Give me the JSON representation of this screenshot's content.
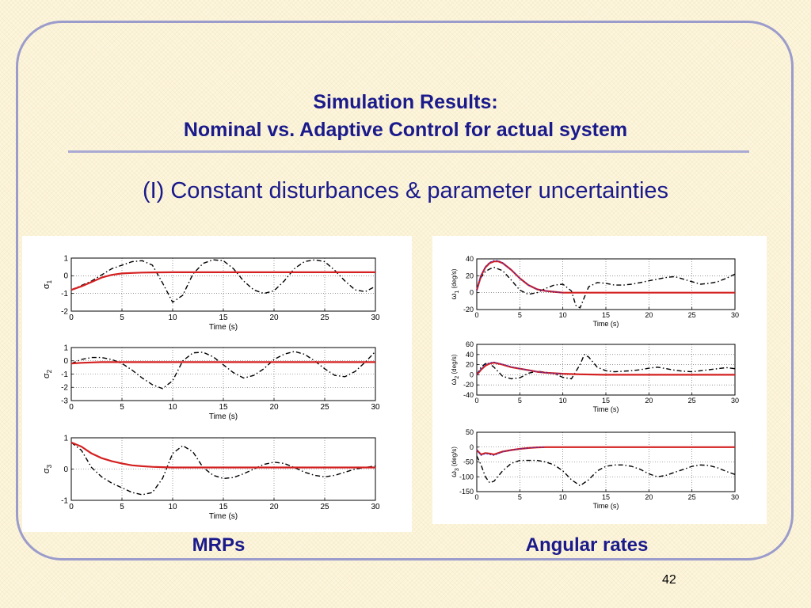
{
  "slide": {
    "title_line1": "Simulation Results:",
    "title_line2": "Nominal vs. Adaptive Control for actual system",
    "subtitle": "(I) Constant disturbances & parameter uncertainties",
    "caption_left": "MRPs",
    "caption_right": "Angular rates",
    "page_number": "42"
  },
  "colors": {
    "title": "#1a1a8c",
    "frame": "#9b9ccc",
    "adaptive_line": "#d42020",
    "nominal_line": "#000000",
    "reference_line": "#2a2acc"
  },
  "chart_data": [
    {
      "type": "line",
      "group": "MRPs",
      "ylabel_symbol": "σ",
      "ylabel_sub": "1",
      "ylabel_unit": "",
      "xlabel": "Time (s)",
      "xlim": [
        0,
        30
      ],
      "ylim": [
        -2,
        1
      ],
      "xticks": [
        0,
        5,
        10,
        15,
        20,
        25,
        30
      ],
      "yticks": [
        -2,
        -1,
        0,
        1
      ],
      "grid": true,
      "series": [
        {
          "style": "dashdot",
          "x": [
            0,
            2,
            4,
            6,
            7,
            8,
            9,
            10,
            11,
            12,
            13,
            14,
            15,
            16,
            17,
            18,
            19,
            20,
            21,
            22,
            23,
            24,
            25,
            26,
            27,
            28,
            29,
            30
          ],
          "y": [
            -0.8,
            -0.3,
            0.4,
            0.8,
            0.85,
            0.6,
            -0.4,
            -1.5,
            -1.1,
            0.1,
            0.7,
            0.9,
            0.85,
            0.4,
            -0.3,
            -0.8,
            -1.0,
            -0.85,
            -0.3,
            0.4,
            0.8,
            0.9,
            0.8,
            0.3,
            -0.3,
            -0.8,
            -0.9,
            -0.6
          ]
        },
        {
          "style": "solid",
          "x": [
            0,
            1,
            2,
            3,
            4,
            5,
            6,
            7,
            8,
            10,
            15,
            20,
            25,
            30
          ],
          "y": [
            -0.8,
            -0.6,
            -0.35,
            -0.1,
            0.05,
            0.13,
            0.16,
            0.18,
            0.19,
            0.2,
            0.2,
            0.2,
            0.2,
            0.2
          ]
        }
      ]
    },
    {
      "type": "line",
      "group": "MRPs",
      "ylabel_symbol": "σ",
      "ylabel_sub": "2",
      "ylabel_unit": "",
      "xlabel": "Time (s)",
      "xlim": [
        0,
        30
      ],
      "ylim": [
        -3,
        1
      ],
      "xticks": [
        0,
        5,
        10,
        15,
        20,
        25,
        30
      ],
      "yticks": [
        -3,
        -2,
        -1,
        0,
        1
      ],
      "grid": true,
      "series": [
        {
          "style": "dashdot",
          "x": [
            0,
            1,
            2,
            3,
            4,
            5,
            6,
            7,
            8,
            9,
            10,
            11,
            12,
            13,
            14,
            15,
            16,
            17,
            18,
            19,
            20,
            21,
            22,
            23,
            24,
            25,
            26,
            27,
            28,
            29,
            30
          ],
          "y": [
            -0.2,
            0.1,
            0.25,
            0.25,
            0.1,
            -0.2,
            -0.7,
            -1.3,
            -1.8,
            -2.1,
            -1.5,
            0.0,
            0.6,
            0.65,
            0.3,
            -0.3,
            -0.9,
            -1.3,
            -1.1,
            -0.6,
            0.1,
            0.5,
            0.7,
            0.5,
            0.0,
            -0.6,
            -1.1,
            -1.2,
            -0.8,
            -0.1,
            0.7
          ]
        },
        {
          "style": "solid",
          "x": [
            0,
            1,
            2,
            3,
            4,
            5,
            10,
            15,
            20,
            25,
            30
          ],
          "y": [
            -0.2,
            -0.15,
            -0.12,
            -0.1,
            -0.1,
            -0.1,
            -0.1,
            -0.1,
            -0.1,
            -0.1,
            -0.1
          ]
        }
      ]
    },
    {
      "type": "line",
      "group": "MRPs",
      "ylabel_symbol": "σ",
      "ylabel_sub": "3",
      "ylabel_unit": "",
      "xlabel": "Time (s)",
      "xlim": [
        0,
        30
      ],
      "ylim": [
        -1,
        1
      ],
      "xticks": [
        0,
        5,
        10,
        15,
        20,
        25,
        30
      ],
      "yticks": [
        -1,
        0,
        1
      ],
      "grid": true,
      "series": [
        {
          "style": "dashdot",
          "x": [
            0,
            1,
            2,
            3,
            4,
            5,
            6,
            7,
            8,
            9,
            10,
            11,
            12,
            13,
            14,
            15,
            16,
            17,
            18,
            19,
            20,
            21,
            22,
            23,
            24,
            25,
            26,
            27,
            28,
            29,
            30
          ],
          "y": [
            0.85,
            0.6,
            0.05,
            -0.25,
            -0.45,
            -0.6,
            -0.75,
            -0.82,
            -0.75,
            -0.3,
            0.5,
            0.75,
            0.55,
            0.05,
            -0.2,
            -0.3,
            -0.27,
            -0.15,
            0.0,
            0.15,
            0.22,
            0.18,
            0.05,
            -0.1,
            -0.2,
            -0.25,
            -0.2,
            -0.1,
            0.0,
            0.05,
            0.1
          ]
        },
        {
          "style": "solid",
          "x": [
            0,
            1,
            2,
            3,
            4,
            5,
            6,
            7,
            8,
            9,
            10,
            15,
            20,
            25,
            30
          ],
          "y": [
            0.85,
            0.72,
            0.5,
            0.35,
            0.25,
            0.18,
            0.12,
            0.09,
            0.07,
            0.06,
            0.05,
            0.05,
            0.05,
            0.05,
            0.05
          ]
        }
      ]
    },
    {
      "type": "line",
      "group": "Angular rates",
      "ylabel_symbol": "ω",
      "ylabel_sub": "1",
      "ylabel_unit": "(deg/s)",
      "xlabel": "Time (s)",
      "xlim": [
        0,
        30
      ],
      "ylim": [
        -20,
        40
      ],
      "xticks": [
        0,
        5,
        10,
        15,
        20,
        25,
        30
      ],
      "yticks": [
        -20,
        0,
        20,
        40
      ],
      "grid": true,
      "series": [
        {
          "style": "dashdot",
          "x": [
            0,
            0.5,
            1,
            1.5,
            2,
            3,
            4,
            5,
            6,
            7,
            8,
            9,
            10,
            11,
            11.5,
            12,
            13,
            14,
            15,
            16,
            17,
            18,
            19,
            20,
            21,
            22,
            23,
            24,
            25,
            26,
            27,
            28,
            29,
            30
          ],
          "y": [
            5,
            18,
            25,
            28,
            30,
            26,
            15,
            3,
            -2,
            0,
            5,
            9,
            10,
            2,
            -15,
            -18,
            7,
            12,
            11,
            9,
            9,
            10,
            12,
            14,
            16,
            18,
            19,
            16,
            13,
            10,
            11,
            13,
            17,
            22
          ]
        },
        {
          "style": "solid",
          "x": [
            0,
            0.5,
            1,
            1.5,
            2,
            2.5,
            3,
            4,
            5,
            6,
            7,
            8,
            9,
            10,
            15,
            20,
            25,
            30
          ],
          "y": [
            3,
            20,
            30,
            35,
            37,
            37,
            35,
            27,
            17,
            9,
            4,
            2,
            1,
            0,
            0,
            0,
            0,
            0
          ]
        },
        {
          "style": "reference",
          "x": [
            0,
            0.5,
            1,
            1.5,
            2,
            2.5,
            3,
            4,
            5,
            6,
            7,
            8,
            9,
            10
          ],
          "y": [
            3,
            21,
            31,
            36,
            38,
            38,
            35,
            27,
            17,
            9,
            4,
            2,
            1,
            0
          ]
        }
      ]
    },
    {
      "type": "line",
      "group": "Angular rates",
      "ylabel_symbol": "ω",
      "ylabel_sub": "2",
      "ylabel_unit": "(deg/s)",
      "xlabel": "Time (s)",
      "xlim": [
        0,
        30
      ],
      "ylim": [
        -40,
        60
      ],
      "xticks": [
        0,
        5,
        10,
        15,
        20,
        25,
        30
      ],
      "yticks": [
        -40,
        -20,
        0,
        20,
        40,
        60
      ],
      "grid": true,
      "series": [
        {
          "style": "dashdot",
          "x": [
            0,
            0.5,
            1,
            1.5,
            2,
            3,
            4,
            5,
            6,
            7,
            8,
            9,
            10,
            11,
            12,
            12.5,
            13,
            14,
            15,
            16,
            17,
            18,
            19,
            20,
            21,
            22,
            23,
            24,
            25,
            26,
            27,
            28,
            29,
            30
          ],
          "y": [
            0,
            15,
            22,
            22,
            15,
            -3,
            -8,
            -6,
            3,
            7,
            5,
            2,
            -5,
            -8,
            20,
            40,
            35,
            15,
            8,
            6,
            7,
            8,
            10,
            13,
            15,
            12,
            9,
            7,
            6,
            8,
            10,
            12,
            14,
            12
          ]
        },
        {
          "style": "solid",
          "x": [
            0,
            0.5,
            1,
            1.5,
            2,
            3,
            4,
            5,
            6,
            7,
            8,
            9,
            10,
            12,
            15,
            20,
            25,
            30
          ],
          "y": [
            0,
            10,
            18,
            22,
            24,
            20,
            15,
            12,
            9,
            6,
            4,
            3,
            2,
            1,
            0,
            0,
            0,
            0
          ]
        },
        {
          "style": "reference",
          "x": [
            0,
            0.5,
            1,
            1.5,
            2,
            3,
            4,
            5,
            6,
            7,
            8,
            9,
            10
          ],
          "y": [
            0,
            12,
            20,
            24,
            25,
            21,
            16,
            12,
            9,
            6,
            4,
            3,
            2
          ]
        }
      ]
    },
    {
      "type": "line",
      "group": "Angular rates",
      "ylabel_symbol": "ω",
      "ylabel_sub": "3",
      "ylabel_unit": "(deg/s)",
      "xlabel": "Time (s)",
      "xlim": [
        0,
        30
      ],
      "ylim": [
        -150,
        50
      ],
      "xticks": [
        0,
        5,
        10,
        15,
        20,
        25,
        30
      ],
      "yticks": [
        -150,
        -100,
        -50,
        0,
        50
      ],
      "grid": true,
      "series": [
        {
          "style": "dashdot",
          "x": [
            0,
            0.5,
            1,
            1.5,
            2,
            3,
            4,
            5,
            6,
            7,
            8,
            9,
            10,
            11,
            12,
            13,
            14,
            15,
            16,
            17,
            18,
            19,
            20,
            21,
            22,
            23,
            24,
            25,
            26,
            27,
            28,
            29,
            30
          ],
          "y": [
            -30,
            -60,
            -100,
            -120,
            -115,
            -80,
            -55,
            -45,
            -45,
            -45,
            -50,
            -60,
            -80,
            -110,
            -130,
            -110,
            -80,
            -65,
            -60,
            -60,
            -65,
            -75,
            -90,
            -100,
            -95,
            -85,
            -75,
            -65,
            -60,
            -62,
            -70,
            -82,
            -92
          ]
        },
        {
          "style": "solid",
          "x": [
            0,
            0.5,
            1,
            1.5,
            2,
            3,
            4,
            5,
            6,
            7,
            8,
            9,
            10,
            15,
            20,
            25,
            30
          ],
          "y": [
            -10,
            -25,
            -20,
            -22,
            -25,
            -15,
            -10,
            -6,
            -3,
            -1,
            0,
            0,
            0,
            0,
            0,
            0,
            0
          ]
        },
        {
          "style": "reference",
          "x": [
            0,
            0.5,
            1,
            1.5,
            2,
            3,
            4,
            5,
            6,
            7,
            8
          ],
          "y": [
            -10,
            -28,
            -22,
            -25,
            -28,
            -16,
            -10,
            -6,
            -3,
            -1,
            0
          ]
        }
      ]
    }
  ]
}
